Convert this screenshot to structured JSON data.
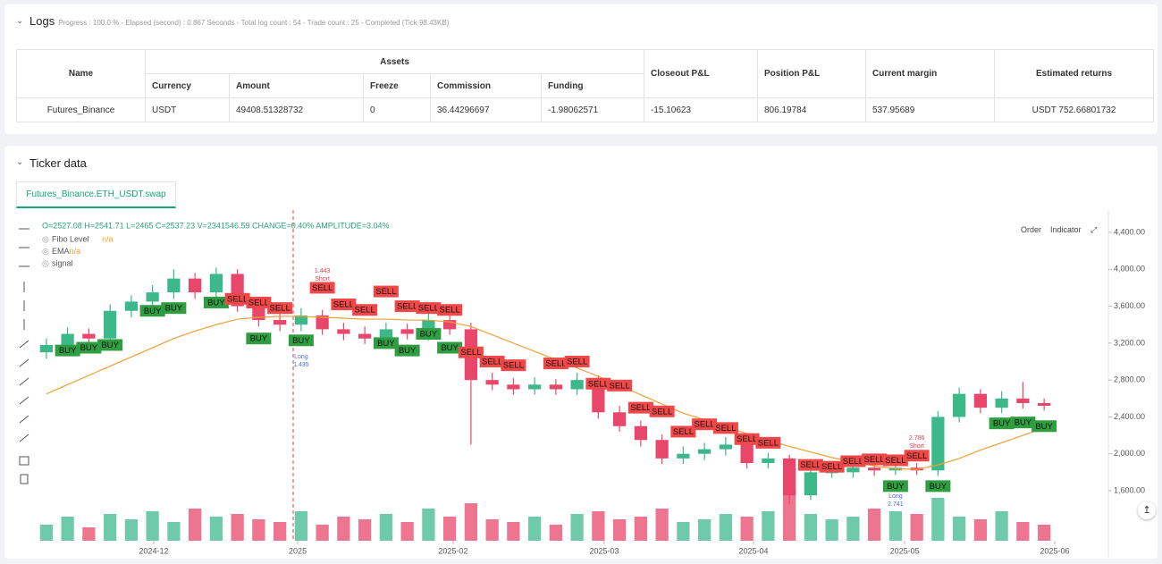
{
  "logs": {
    "title": "Logs",
    "status": "Progress : 100.0 % - Elapsed (second) : 0.867  Seconds - Total log count : 54 - Trade count : 25 - Completed (Tick 98.43KB)"
  },
  "table": {
    "headers": [
      "Name",
      "Assets",
      "Closeout P&L",
      "Position P&L",
      "Current margin",
      "Estimated returns"
    ],
    "subheaders": [
      "Currency",
      "Amount",
      "Freeze",
      "Commission",
      "Funding"
    ],
    "rows": [
      [
        "Futures_Binance",
        "USDT",
        "49408.51328732",
        "0",
        "36.44296697",
        "-1.98062571",
        "-15.10623",
        "806.19784",
        "537.95689",
        "USDT 752.66801732"
      ]
    ]
  },
  "ticker": {
    "title": "Ticker data",
    "tab": "Futures_Binance.ETH_USDT.swap",
    "buttons": [
      "Order",
      "Indicator"
    ]
  },
  "chart_data": {
    "type": "candlestick",
    "ohlc_header": "O=2527.08 H=2541.71 L=2465 C=2537.23 V=2341546.59 CHANGE=0.40% AMPLITUDE=3.04%",
    "legend": [
      {
        "name": "Fibo Level",
        "value": "n/a"
      },
      {
        "name": "EMA",
        "value": "n/a"
      },
      {
        "name": "signal"
      }
    ],
    "up_color": "#3db88b",
    "down_color": "#e8476b",
    "ema_color": "#f0a030",
    "open": [
      3100,
      3180,
      3300,
      3250,
      3550,
      3650,
      3750,
      3900,
      3750,
      3950,
      3600,
      3450,
      3400,
      3500,
      3350,
      3300,
      3250,
      3350,
      3300,
      3450,
      3350,
      2800,
      2750,
      2700,
      2750,
      2700,
      2800,
      2450,
      2300,
      2150,
      1950,
      2000,
      2050,
      2100,
      1900,
      1950,
      1550,
      1800,
      1800,
      1850,
      1820,
      1850,
      1820,
      2400,
      2650,
      2500,
      2600,
      2550
    ],
    "high": [
      3250,
      3370,
      3360,
      3620,
      3720,
      3830,
      4000,
      3960,
      4020,
      4000,
      3680,
      3530,
      3580,
      3560,
      3420,
      3380,
      3420,
      3410,
      3520,
      3510,
      3420,
      2880,
      2820,
      2830,
      2810,
      2880,
      2850,
      2520,
      2360,
      2210,
      2080,
      2120,
      2180,
      2150,
      2010,
      1990,
      1860,
      1860,
      1900,
      1890,
      1900,
      1900,
      2460,
      2720,
      2700,
      2680,
      2780,
      2600
    ],
    "low": [
      3030,
      3110,
      3190,
      3180,
      3480,
      3580,
      3680,
      3680,
      3690,
      3540,
      3380,
      3330,
      3330,
      3290,
      3230,
      3190,
      3190,
      3240,
      3230,
      3290,
      2100,
      2690,
      2640,
      2640,
      2640,
      2640,
      2380,
      2240,
      2080,
      1890,
      1890,
      1930,
      1980,
      1840,
      1840,
      1450,
      1500,
      1740,
      1740,
      1760,
      1770,
      1770,
      1760,
      2340,
      2440,
      2440,
      2490,
      2470
    ],
    "close": [
      3180,
      3300,
      3250,
      3550,
      3650,
      3750,
      3900,
      3750,
      3950,
      3600,
      3450,
      3400,
      3500,
      3350,
      3300,
      3250,
      3350,
      3300,
      3450,
      3350,
      2800,
      2750,
      2700,
      2750,
      2700,
      2800,
      2450,
      2300,
      2150,
      1950,
      2000,
      2050,
      2100,
      1900,
      1950,
      1550,
      1800,
      1800,
      1850,
      1820,
      1850,
      1820,
      2400,
      2650,
      2500,
      2600,
      2550,
      2520
    ],
    "ema": [
      2650,
      2750,
      2850,
      2950,
      3050,
      3150,
      3250,
      3330,
      3400,
      3460,
      3480,
      3490,
      3490,
      3480,
      3470,
      3460,
      3460,
      3450,
      3450,
      3430,
      3380,
      3290,
      3200,
      3110,
      3020,
      2930,
      2840,
      2740,
      2640,
      2540,
      2440,
      2370,
      2290,
      2220,
      2150,
      2080,
      2020,
      1960,
      1910,
      1870,
      1840,
      1830,
      1880,
      1950,
      2040,
      2120,
      2200,
      2280
    ],
    "volume": [
      30,
      45,
      25,
      50,
      40,
      55,
      35,
      60,
      45,
      50,
      40,
      35,
      55,
      30,
      45,
      40,
      50,
      35,
      60,
      45,
      70,
      40,
      35,
      45,
      30,
      50,
      55,
      40,
      45,
      60,
      35,
      40,
      50,
      45,
      55,
      95,
      50,
      40,
      45,
      60,
      55,
      50,
      80,
      45,
      40,
      55,
      35,
      30
    ],
    "volume_lim": [
      0,
      100
    ],
    "signals": [
      {
        "label": "BUY",
        "index": 1,
        "value": 3120
      },
      {
        "label": "BUY",
        "index": 2,
        "value": 3150
      },
      {
        "label": "BUY",
        "index": 3,
        "value": 3180
      },
      {
        "label": "BUY",
        "index": 5,
        "value": 3550
      },
      {
        "label": "BUY",
        "index": 6,
        "value": 3580
      },
      {
        "label": "BUY",
        "index": 8,
        "value": 3640
      },
      {
        "label": "BUY",
        "index": 10,
        "value": 3250
      },
      {
        "label": "BUY",
        "index": 12,
        "value": 3230
      },
      {
        "label": "BUY",
        "index": 16,
        "value": 3200
      },
      {
        "label": "BUY",
        "index": 17,
        "value": 3120
      },
      {
        "label": "BUY",
        "index": 18,
        "value": 3300
      },
      {
        "label": "BUY",
        "index": 19,
        "value": 3150
      },
      {
        "label": "BUY",
        "index": 40,
        "value": 1650
      },
      {
        "label": "BUY",
        "index": 42,
        "value": 1650
      },
      {
        "label": "BUY",
        "index": 45,
        "value": 2330
      },
      {
        "label": "BUY",
        "index": 46,
        "value": 2340
      },
      {
        "label": "BUY",
        "index": 47,
        "value": 2300
      },
      {
        "label": "SELL",
        "index": 9,
        "value": 3680
      },
      {
        "label": "SELL",
        "index": 10,
        "value": 3640
      },
      {
        "label": "SELL",
        "index": 11,
        "value": 3580
      },
      {
        "label": "SELL",
        "index": 13,
        "value": 3800
      },
      {
        "label": "SELL",
        "index": 14,
        "value": 3620
      },
      {
        "label": "SELL",
        "index": 15,
        "value": 3560
      },
      {
        "label": "SELL",
        "index": 16,
        "value": 3760
      },
      {
        "label": "SELL",
        "index": 17,
        "value": 3600
      },
      {
        "label": "SELL",
        "index": 18,
        "value": 3580
      },
      {
        "label": "SELL",
        "index": 19,
        "value": 3560
      },
      {
        "label": "SELL",
        "index": 20,
        "value": 3100
      },
      {
        "label": "SELL",
        "index": 21,
        "value": 3000
      },
      {
        "label": "SELL",
        "index": 22,
        "value": 2960
      },
      {
        "label": "SELL",
        "index": 24,
        "value": 2980
      },
      {
        "label": "SELL",
        "index": 25,
        "value": 3000
      },
      {
        "label": "SELL",
        "index": 26,
        "value": 2760
      },
      {
        "label": "SELL",
        "index": 27,
        "value": 2740
      },
      {
        "label": "SELL",
        "index": 28,
        "value": 2500
      },
      {
        "label": "SELL",
        "index": 29,
        "value": 2460
      },
      {
        "label": "SELL",
        "index": 30,
        "value": 2240
      },
      {
        "label": "SELL",
        "index": 31,
        "value": 2320
      },
      {
        "label": "SELL",
        "index": 32,
        "value": 2280
      },
      {
        "label": "SELL",
        "index": 33,
        "value": 2160
      },
      {
        "label": "SELL",
        "index": 34,
        "value": 2120
      },
      {
        "label": "SELL",
        "index": 36,
        "value": 1880
      },
      {
        "label": "SELL",
        "index": 37,
        "value": 1860
      },
      {
        "label": "SELL",
        "index": 38,
        "value": 1920
      },
      {
        "label": "SELL",
        "index": 39,
        "value": 1940
      },
      {
        "label": "SELL",
        "index": 40,
        "value": 1930
      },
      {
        "label": "SELL",
        "index": 41,
        "value": 1980
      }
    ],
    "annotations": [
      {
        "index": 13,
        "value": 3980,
        "lines": [
          "1.443",
          "Short"
        ],
        "color": "#e04050"
      },
      {
        "index": 12,
        "value": 3050,
        "lines": [
          "Long",
          "1.435"
        ],
        "color": "#4a6ee0"
      },
      {
        "index": 40,
        "value": 1540,
        "lines": [
          "Long",
          "2.741"
        ],
        "color": "#4a6ee0"
      },
      {
        "index": 41,
        "value": 2170,
        "lines": [
          "2.786",
          "Short"
        ],
        "color": "#e04050"
      }
    ],
    "xlim": [
      0,
      48
    ],
    "xticks": [
      {
        "value": 5.56,
        "label": "2024-12"
      },
      {
        "value": 12.34,
        "label": "2025"
      },
      {
        "value": 19.66,
        "label": "2025-02"
      },
      {
        "value": 26.78,
        "label": "2025-03"
      },
      {
        "value": 33.81,
        "label": "2025-04"
      },
      {
        "value": 40.93,
        "label": "2025-05"
      },
      {
        "value": 48,
        "label": "2025-06"
      }
    ],
    "ylim": [
      1106,
      4594
    ],
    "yticks": [
      {
        "value": 1600,
        "label": "1,600.00"
      },
      {
        "value": 2000,
        "label": "2,000.00"
      },
      {
        "value": 2400,
        "label": "2,400.00"
      },
      {
        "value": 2800,
        "label": "2,800.00"
      },
      {
        "value": 3200,
        "label": "3,200.00"
      },
      {
        "value": 3600,
        "label": "3,600.00"
      },
      {
        "value": 4000,
        "label": "4,000.00"
      },
      {
        "value": 4400,
        "label": "4,400.00"
      }
    ]
  }
}
